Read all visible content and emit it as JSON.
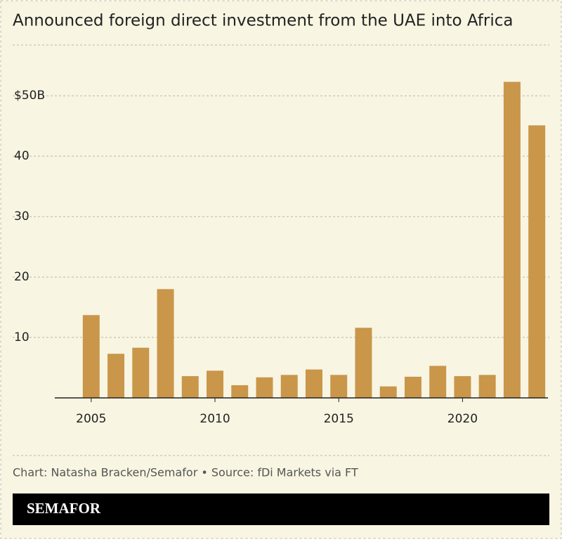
{
  "chart_data": {
    "type": "bar",
    "title": "Announced foreign direct investment from the UAE into Africa",
    "x": [
      2005,
      2006,
      2007,
      2008,
      2009,
      2010,
      2011,
      2012,
      2013,
      2014,
      2015,
      2016,
      2017,
      2018,
      2019,
      2020,
      2021,
      2022,
      2023
    ],
    "values": [
      13.7,
      7.3,
      8.3,
      18.0,
      3.6,
      4.5,
      2.1,
      3.4,
      3.8,
      4.7,
      3.8,
      11.6,
      1.9,
      3.5,
      5.3,
      3.6,
      3.8,
      52.3,
      45.1
    ],
    "color": "#c9964a",
    "xlim": [
      2003.53,
      2023.45
    ],
    "xticks": [
      2005,
      2010,
      2015,
      2020
    ],
    "ylim": [
      0,
      58.4
    ],
    "yticks": [
      10,
      20,
      30,
      40,
      {
        "value": 50,
        "label": "$50B"
      }
    ],
    "grid": true,
    "source": "Chart: Natasha Bracken/Semafor • Source: fDi Markets via FT",
    "brand": "SEMAFOR"
  }
}
